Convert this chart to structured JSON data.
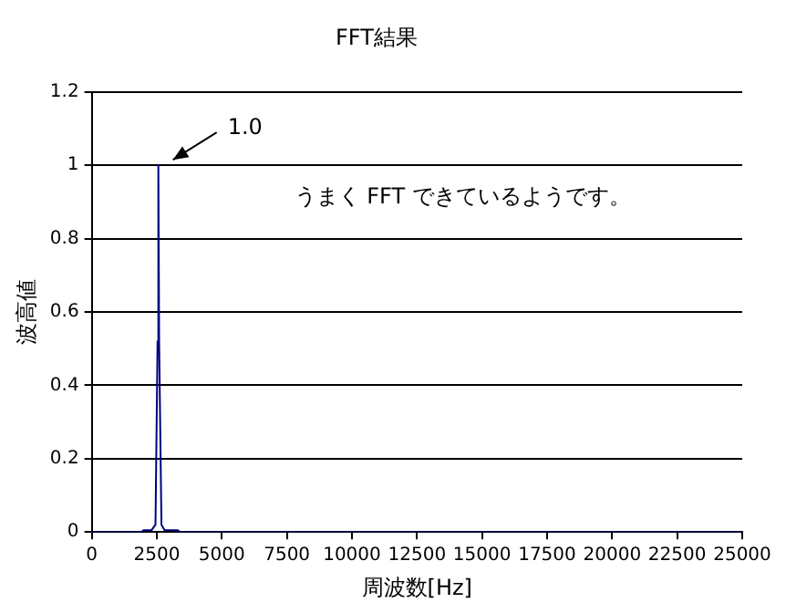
{
  "chart_data": {
    "type": "line",
    "title": "FFT結果",
    "xlabel": "周波数[Hz]",
    "ylabel": "波高値",
    "x": [
      0,
      1900,
      2000,
      2300,
      2450,
      2530,
      2560,
      2590,
      2680,
      2800,
      3300,
      3400,
      25000
    ],
    "series": [
      {
        "color": "#000080",
        "values": [
          0,
          0,
          0.005,
          0.005,
          0.02,
          0.52,
          1.0,
          0.52,
          0.02,
          0.005,
          0.005,
          0,
          0
        ]
      }
    ],
    "xlim": [
      0,
      25000
    ],
    "xticks": [
      0,
      2500,
      5000,
      7500,
      10000,
      12500,
      15000,
      17500,
      20000,
      22500,
      25000
    ],
    "ylim": [
      0,
      1.2
    ],
    "yticks": [
      {
        "value": 0,
        "label": "0"
      },
      0.2,
      0.4,
      0.6,
      0.8,
      {
        "value": 1,
        "label": "1"
      },
      1.2
    ],
    "grid": "y",
    "legend": false,
    "marker": "none",
    "line_style": "solid",
    "annotations": [
      {
        "text": "1.0",
        "x": 2560,
        "y": 1.0
      },
      "うまく FFT できているようです。"
    ]
  }
}
